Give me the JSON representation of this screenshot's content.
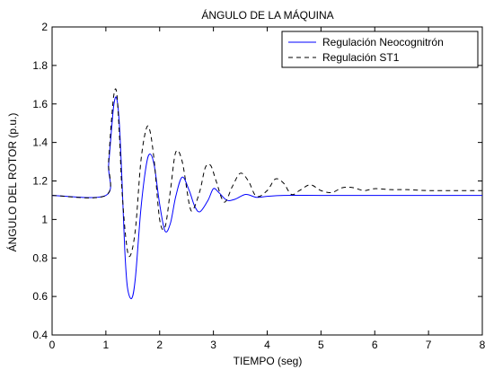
{
  "chart_data": {
    "type": "line",
    "title": "ÁNGULO DE LA MÁQUINA",
    "xlabel": "TIEMPO (seg)",
    "ylabel": "ÁNGULO DEL ROTOR (p.u.)",
    "xlim": [
      0,
      8
    ],
    "ylim": [
      0.4,
      2
    ],
    "xticks": [
      "0",
      "1",
      "2",
      "3",
      "4",
      "5",
      "6",
      "7",
      "8"
    ],
    "yticks": [
      "0.4",
      "0.6",
      "0.8",
      "1",
      "1.2",
      "1.4",
      "1.6",
      "1.8",
      "2"
    ],
    "grid": false,
    "legend_position": "top-right",
    "series": [
      {
        "name": "Regulación Neocognitrón",
        "color": "#0000ff",
        "style": "solid",
        "x": [
          0,
          1.0,
          1.05,
          1.1,
          1.15,
          1.2,
          1.25,
          1.3,
          1.35,
          1.4,
          1.48,
          1.55,
          1.65,
          1.75,
          1.82,
          1.9,
          2.0,
          2.1,
          2.2,
          2.3,
          2.42,
          2.55,
          2.65,
          2.75,
          2.9,
          3.0,
          3.1,
          3.25,
          3.4,
          3.6,
          3.8,
          4.0,
          4.3,
          5.0,
          6.0,
          7.0,
          8.0
        ],
        "y": [
          1.125,
          1.125,
          1.28,
          1.45,
          1.6,
          1.63,
          1.5,
          1.2,
          0.85,
          0.65,
          0.59,
          0.7,
          1.05,
          1.28,
          1.34,
          1.28,
          1.08,
          0.94,
          0.98,
          1.12,
          1.22,
          1.15,
          1.07,
          1.04,
          1.1,
          1.16,
          1.14,
          1.1,
          1.105,
          1.13,
          1.115,
          1.12,
          1.125,
          1.125,
          1.125,
          1.125,
          1.125
        ]
      },
      {
        "name": "Regulación ST1",
        "color": "#000000",
        "style": "dashed",
        "x": [
          0,
          1.0,
          1.05,
          1.1,
          1.15,
          1.2,
          1.25,
          1.3,
          1.38,
          1.45,
          1.55,
          1.65,
          1.75,
          1.82,
          1.9,
          2.0,
          2.1,
          2.2,
          2.3,
          2.42,
          2.55,
          2.62,
          2.75,
          2.85,
          2.95,
          3.05,
          3.2,
          3.35,
          3.5,
          3.65,
          3.8,
          4.0,
          4.15,
          4.3,
          4.45,
          4.6,
          4.8,
          5.0,
          5.2,
          5.4,
          5.6,
          5.8,
          6.0,
          6.3,
          6.6,
          7.0,
          7.5,
          8.0
        ],
        "y": [
          1.125,
          1.125,
          1.3,
          1.5,
          1.65,
          1.66,
          1.45,
          1.15,
          0.88,
          0.81,
          0.95,
          1.3,
          1.47,
          1.46,
          1.3,
          1.0,
          0.96,
          1.15,
          1.35,
          1.3,
          1.08,
          1.05,
          1.15,
          1.27,
          1.28,
          1.2,
          1.09,
          1.17,
          1.24,
          1.2,
          1.12,
          1.15,
          1.21,
          1.19,
          1.13,
          1.15,
          1.18,
          1.15,
          1.14,
          1.165,
          1.165,
          1.15,
          1.16,
          1.155,
          1.155,
          1.15,
          1.15,
          1.15
        ]
      }
    ]
  }
}
